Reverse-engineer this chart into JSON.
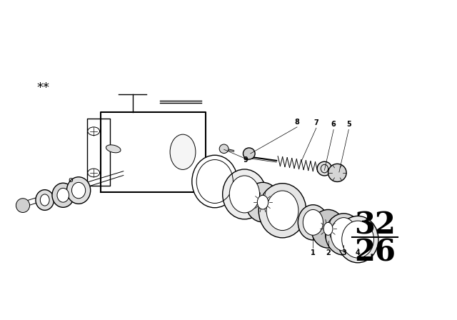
{
  "bg_color": "#ffffff",
  "line_color": "#000000",
  "stars_symbol": "**",
  "num_top": "32",
  "num_bot": "26",
  "part_numbers": [
    "1",
    "2",
    "3",
    "4",
    "5",
    "6",
    "7",
    "8",
    "9"
  ]
}
